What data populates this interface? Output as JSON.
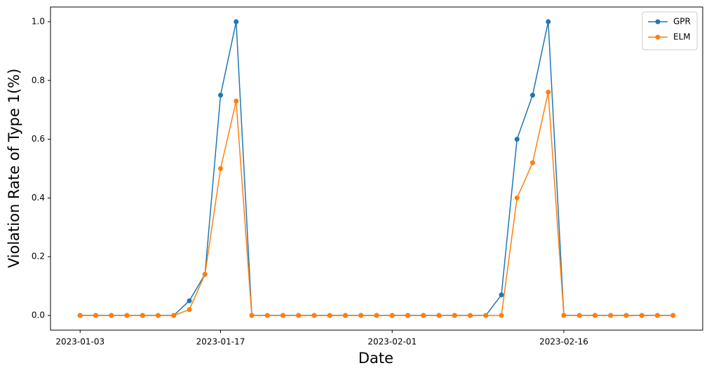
{
  "chart_data": {
    "type": "line",
    "x_label": "Date",
    "y_label": "Violation Rate of Type 1(%)",
    "categories": [
      "2023-01-03",
      null,
      null,
      null,
      null,
      null,
      null,
      null,
      null,
      "2023-01-17",
      null,
      null,
      null,
      null,
      null,
      null,
      null,
      null,
      null,
      null,
      "2023-02-01",
      null,
      null,
      null,
      null,
      null,
      null,
      null,
      null,
      null,
      null,
      "2023-02-16",
      null,
      null,
      null,
      null,
      null,
      null,
      null
    ],
    "series": [
      {
        "name": "GPR",
        "color": "#1f77b4",
        "values": [
          0,
          0,
          0,
          0,
          0,
          0,
          0,
          0.05,
          0.14,
          0.75,
          1.0,
          0,
          0,
          0,
          0,
          0,
          0,
          0,
          0,
          0,
          0,
          0,
          0,
          0,
          0,
          0,
          0,
          0.07,
          0.6,
          0.75,
          1.0,
          0,
          0,
          0,
          0,
          0,
          0,
          0,
          0
        ]
      },
      {
        "name": "ELM",
        "color": "#ff7f0e",
        "values": [
          0,
          0,
          0,
          0,
          0,
          0,
          0,
          0.02,
          0.14,
          0.5,
          0.73,
          0,
          0,
          0,
          0,
          0,
          0,
          0,
          0,
          0,
          0,
          0,
          0,
          0,
          0,
          0,
          0,
          0,
          0.4,
          0.52,
          0.76,
          0,
          0,
          0,
          0,
          0,
          0,
          0,
          0
        ]
      }
    ],
    "ylim": [
      -0.05,
      1.05
    ],
    "yticks": [
      {
        "value": 0,
        "label": "0.0"
      },
      {
        "value": 0.2,
        "label": "0.2"
      },
      {
        "value": 0.4,
        "label": "0.4"
      },
      {
        "value": 0.6,
        "label": "0.6"
      },
      {
        "value": 0.8,
        "label": "0.8"
      },
      {
        "value": 1,
        "label": "1.0"
      }
    ],
    "grid": false,
    "legend": "upper right"
  }
}
